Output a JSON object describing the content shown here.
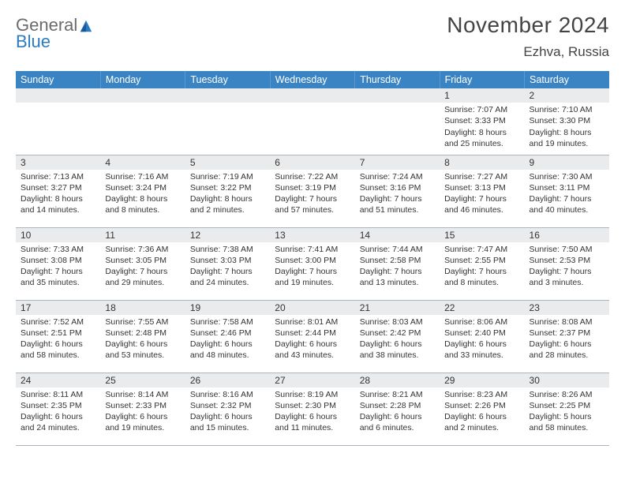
{
  "logo": {
    "word1": "General",
    "word2": "Blue"
  },
  "title": "November 2024",
  "location": "Ezhva, Russia",
  "weekdays": [
    "Sunday",
    "Monday",
    "Tuesday",
    "Wednesday",
    "Thursday",
    "Friday",
    "Saturday"
  ],
  "colors": {
    "header_bg": "#3b84c4",
    "header_text": "#ffffff",
    "daynum_bg": "#e9ebed",
    "border": "#aab5c0",
    "logo_grey": "#6b6b6b",
    "logo_blue": "#2c7ac2"
  },
  "weeks": [
    [
      null,
      null,
      null,
      null,
      null,
      {
        "n": "1",
        "sunrise": "7:07 AM",
        "sunset": "3:33 PM",
        "daylight": "8 hours and 25 minutes."
      },
      {
        "n": "2",
        "sunrise": "7:10 AM",
        "sunset": "3:30 PM",
        "daylight": "8 hours and 19 minutes."
      }
    ],
    [
      {
        "n": "3",
        "sunrise": "7:13 AM",
        "sunset": "3:27 PM",
        "daylight": "8 hours and 14 minutes."
      },
      {
        "n": "4",
        "sunrise": "7:16 AM",
        "sunset": "3:24 PM",
        "daylight": "8 hours and 8 minutes."
      },
      {
        "n": "5",
        "sunrise": "7:19 AM",
        "sunset": "3:22 PM",
        "daylight": "8 hours and 2 minutes."
      },
      {
        "n": "6",
        "sunrise": "7:22 AM",
        "sunset": "3:19 PM",
        "daylight": "7 hours and 57 minutes."
      },
      {
        "n": "7",
        "sunrise": "7:24 AM",
        "sunset": "3:16 PM",
        "daylight": "7 hours and 51 minutes."
      },
      {
        "n": "8",
        "sunrise": "7:27 AM",
        "sunset": "3:13 PM",
        "daylight": "7 hours and 46 minutes."
      },
      {
        "n": "9",
        "sunrise": "7:30 AM",
        "sunset": "3:11 PM",
        "daylight": "7 hours and 40 minutes."
      }
    ],
    [
      {
        "n": "10",
        "sunrise": "7:33 AM",
        "sunset": "3:08 PM",
        "daylight": "7 hours and 35 minutes."
      },
      {
        "n": "11",
        "sunrise": "7:36 AM",
        "sunset": "3:05 PM",
        "daylight": "7 hours and 29 minutes."
      },
      {
        "n": "12",
        "sunrise": "7:38 AM",
        "sunset": "3:03 PM",
        "daylight": "7 hours and 24 minutes."
      },
      {
        "n": "13",
        "sunrise": "7:41 AM",
        "sunset": "3:00 PM",
        "daylight": "7 hours and 19 minutes."
      },
      {
        "n": "14",
        "sunrise": "7:44 AM",
        "sunset": "2:58 PM",
        "daylight": "7 hours and 13 minutes."
      },
      {
        "n": "15",
        "sunrise": "7:47 AM",
        "sunset": "2:55 PM",
        "daylight": "7 hours and 8 minutes."
      },
      {
        "n": "16",
        "sunrise": "7:50 AM",
        "sunset": "2:53 PM",
        "daylight": "7 hours and 3 minutes."
      }
    ],
    [
      {
        "n": "17",
        "sunrise": "7:52 AM",
        "sunset": "2:51 PM",
        "daylight": "6 hours and 58 minutes."
      },
      {
        "n": "18",
        "sunrise": "7:55 AM",
        "sunset": "2:48 PM",
        "daylight": "6 hours and 53 minutes."
      },
      {
        "n": "19",
        "sunrise": "7:58 AM",
        "sunset": "2:46 PM",
        "daylight": "6 hours and 48 minutes."
      },
      {
        "n": "20",
        "sunrise": "8:01 AM",
        "sunset": "2:44 PM",
        "daylight": "6 hours and 43 minutes."
      },
      {
        "n": "21",
        "sunrise": "8:03 AM",
        "sunset": "2:42 PM",
        "daylight": "6 hours and 38 minutes."
      },
      {
        "n": "22",
        "sunrise": "8:06 AM",
        "sunset": "2:40 PM",
        "daylight": "6 hours and 33 minutes."
      },
      {
        "n": "23",
        "sunrise": "8:08 AM",
        "sunset": "2:37 PM",
        "daylight": "6 hours and 28 minutes."
      }
    ],
    [
      {
        "n": "24",
        "sunrise": "8:11 AM",
        "sunset": "2:35 PM",
        "daylight": "6 hours and 24 minutes."
      },
      {
        "n": "25",
        "sunrise": "8:14 AM",
        "sunset": "2:33 PM",
        "daylight": "6 hours and 19 minutes."
      },
      {
        "n": "26",
        "sunrise": "8:16 AM",
        "sunset": "2:32 PM",
        "daylight": "6 hours and 15 minutes."
      },
      {
        "n": "27",
        "sunrise": "8:19 AM",
        "sunset": "2:30 PM",
        "daylight": "6 hours and 11 minutes."
      },
      {
        "n": "28",
        "sunrise": "8:21 AM",
        "sunset": "2:28 PM",
        "daylight": "6 hours and 6 minutes."
      },
      {
        "n": "29",
        "sunrise": "8:23 AM",
        "sunset": "2:26 PM",
        "daylight": "6 hours and 2 minutes."
      },
      {
        "n": "30",
        "sunrise": "8:26 AM",
        "sunset": "2:25 PM",
        "daylight": "5 hours and 58 minutes."
      }
    ]
  ],
  "labels": {
    "sunrise": "Sunrise:",
    "sunset": "Sunset:",
    "daylight": "Daylight:"
  }
}
